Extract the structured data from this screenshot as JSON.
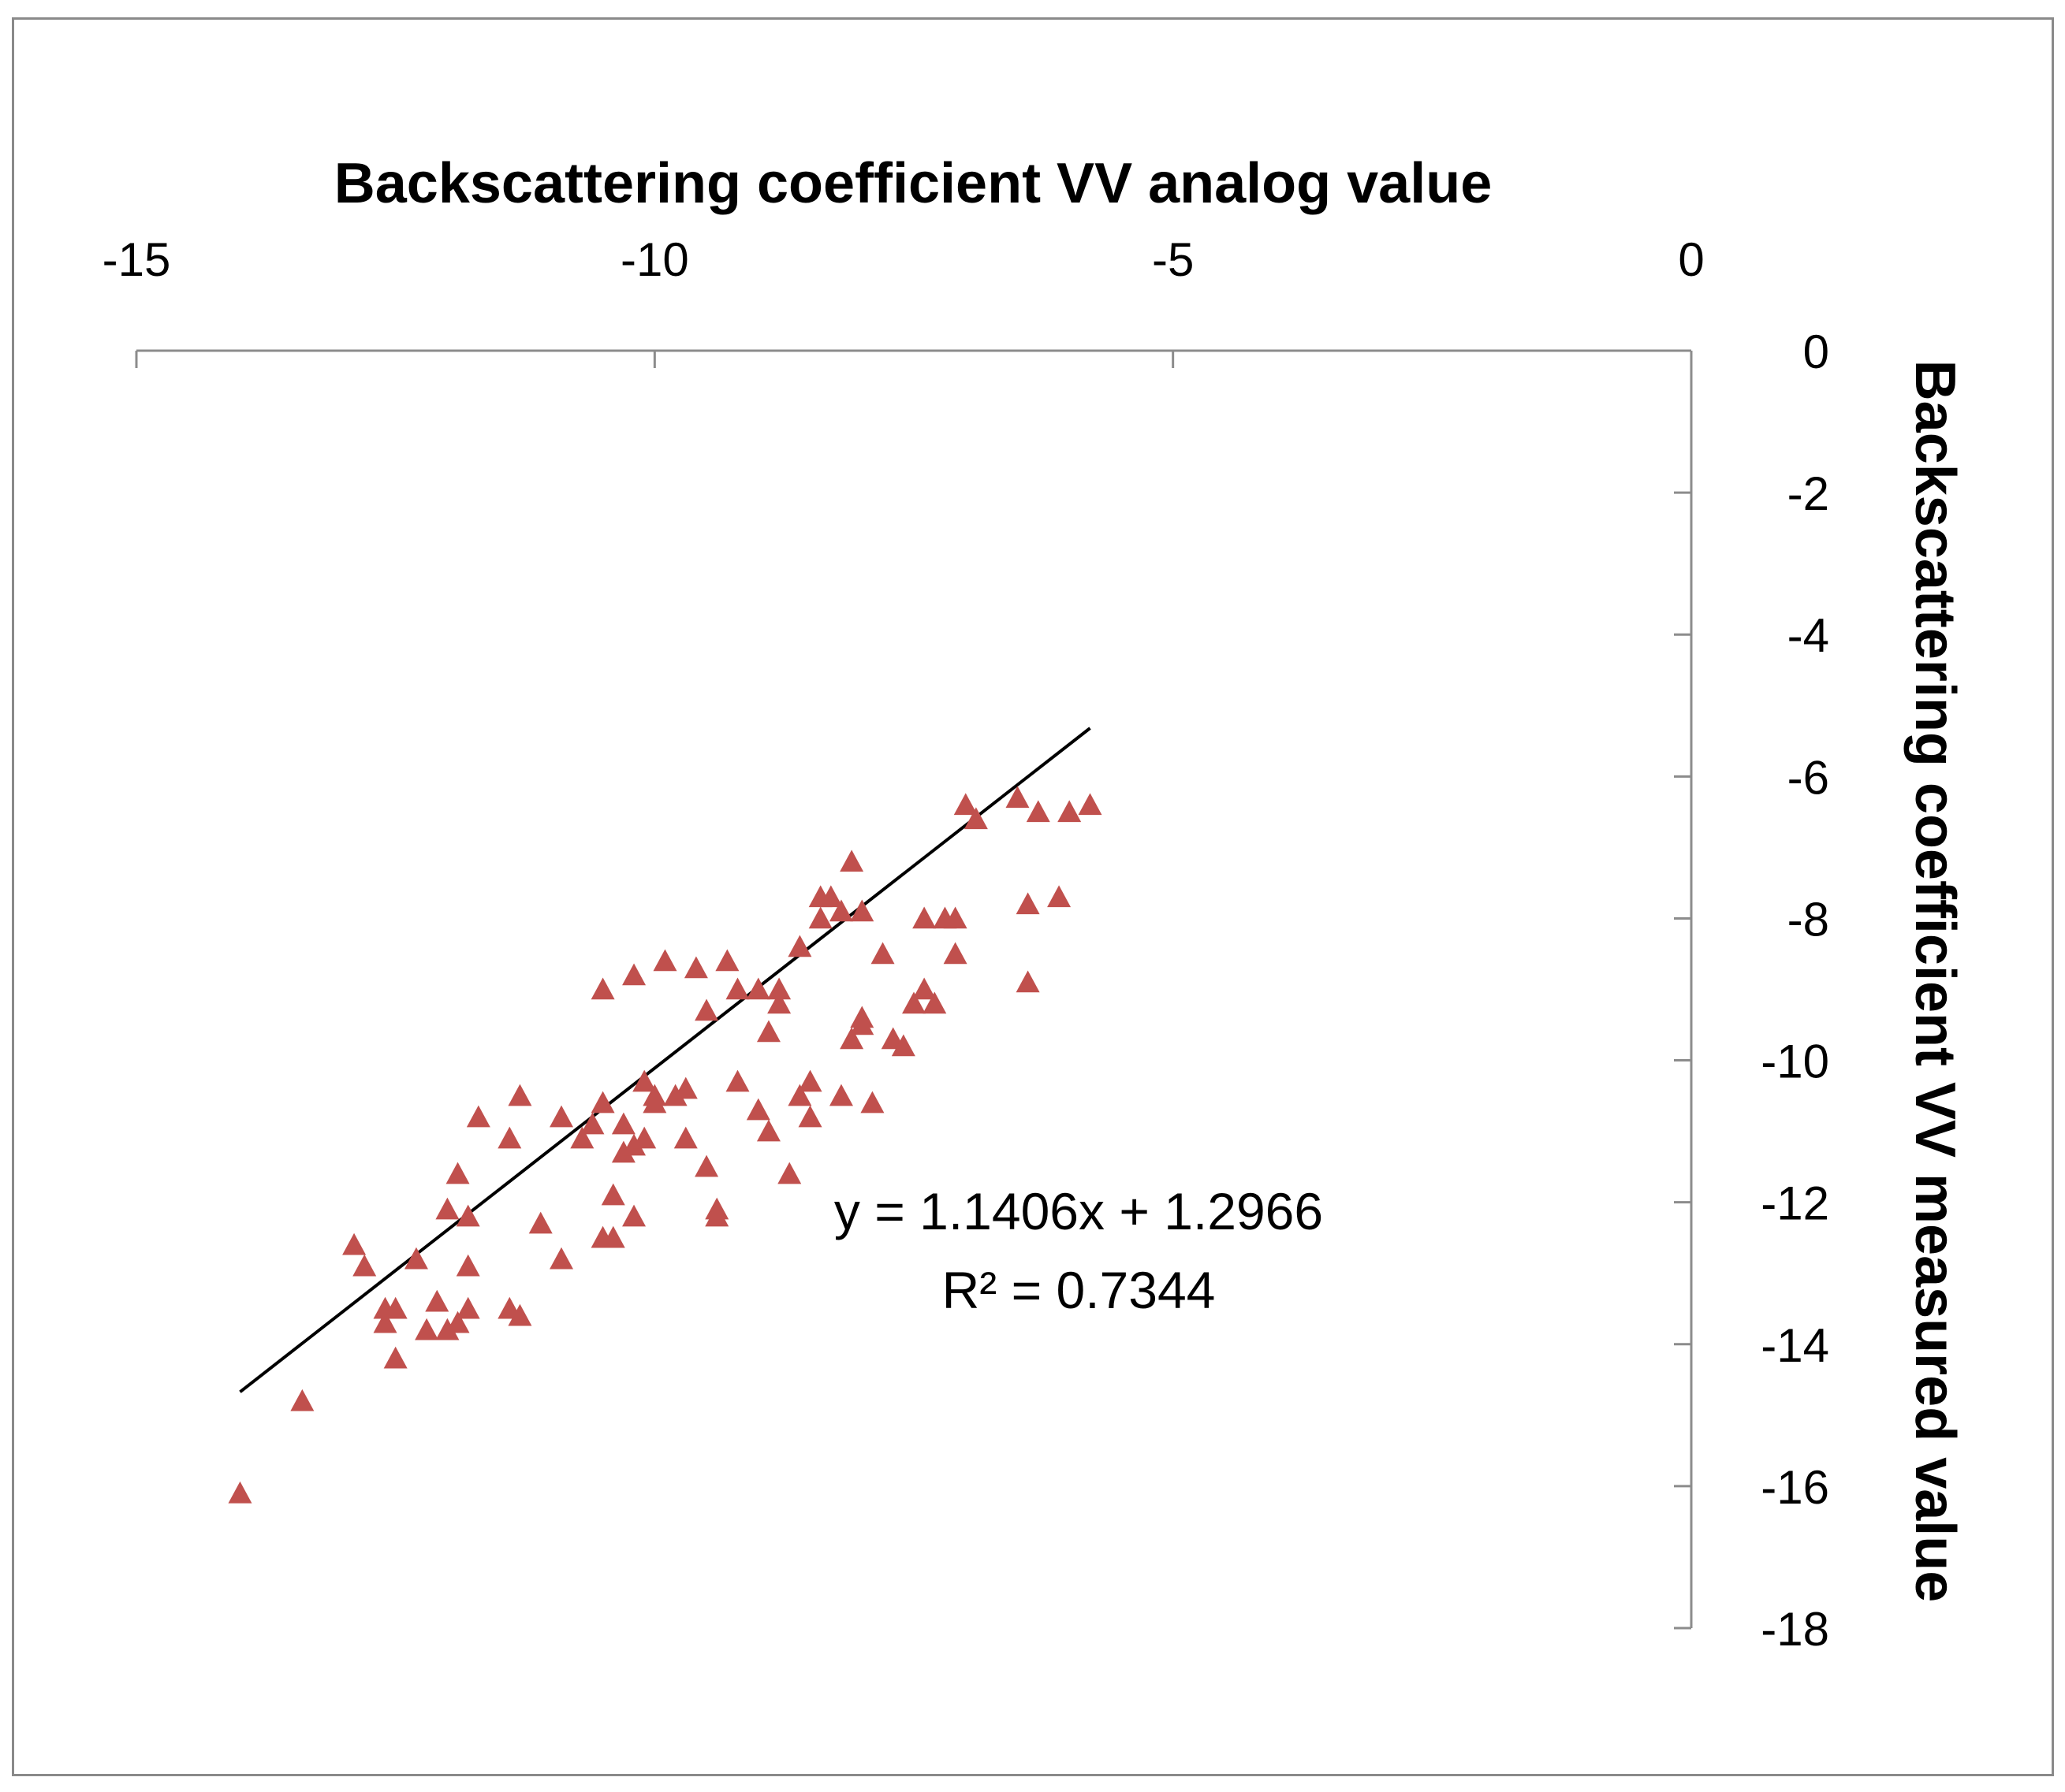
{
  "chart_data": {
    "type": "scatter",
    "title": "",
    "xlabel": "Backscattering coefficient VV analog value",
    "ylabel": "Backscattering coefficient VV measured value",
    "xlim": [
      -15,
      0
    ],
    "ylim": [
      -18,
      0
    ],
    "x_ticks": [
      "-15",
      "-10",
      "-5",
      "0"
    ],
    "y_ticks": [
      "0",
      "-2",
      "-4",
      "-6",
      "-8",
      "-10",
      "-12",
      "-14",
      "-16",
      "-18"
    ],
    "x_axis_position": "top",
    "y_axis_position": "right",
    "grid": false,
    "marker": "triangle",
    "marker_color": "#c0504d",
    "trendline": {
      "slope": 1.1406,
      "intercept": 1.2966,
      "x_range": [
        -14.0,
        -5.8
      ],
      "color": "#000000",
      "equation": "y = 1.1406x + 1.2966",
      "r2_label": "R² = 0.7344"
    },
    "series": [
      {
        "name": "Backscattering coefficient VV",
        "points": [
          [
            -14.0,
            -16.1
          ],
          [
            -13.4,
            -14.8
          ],
          [
            -12.9,
            -12.6
          ],
          [
            -12.8,
            -12.9
          ],
          [
            -12.6,
            -13.7
          ],
          [
            -12.6,
            -13.5
          ],
          [
            -12.5,
            -14.2
          ],
          [
            -12.5,
            -13.5
          ],
          [
            -12.3,
            -12.8
          ],
          [
            -12.2,
            -13.8
          ],
          [
            -12.1,
            -13.4
          ],
          [
            -12.0,
            -13.8
          ],
          [
            -12.0,
            -12.1
          ],
          [
            -11.9,
            -11.6
          ],
          [
            -11.9,
            -13.7
          ],
          [
            -11.8,
            -12.2
          ],
          [
            -11.8,
            -12.9
          ],
          [
            -11.8,
            -13.5
          ],
          [
            -11.7,
            -10.8
          ],
          [
            -11.4,
            -13.5
          ],
          [
            -11.4,
            -11.1
          ],
          [
            -11.3,
            -10.5
          ],
          [
            -11.3,
            -13.6
          ],
          [
            -11.1,
            -12.3
          ],
          [
            -10.9,
            -10.8
          ],
          [
            -10.9,
            -12.8
          ],
          [
            -10.7,
            -11.1
          ],
          [
            -10.6,
            -10.9
          ],
          [
            -10.5,
            -10.6
          ],
          [
            -10.5,
            -12.5
          ],
          [
            -10.5,
            -9.0
          ],
          [
            -10.4,
            -11.9
          ],
          [
            -10.4,
            -12.5
          ],
          [
            -10.3,
            -11.3
          ],
          [
            -10.3,
            -10.9
          ],
          [
            -10.2,
            -11.2
          ],
          [
            -10.2,
            -8.8
          ],
          [
            -10.2,
            -12.2
          ],
          [
            -10.1,
            -10.3
          ],
          [
            -10.1,
            -11.1
          ],
          [
            -10.0,
            -10.6
          ],
          [
            -10.0,
            -10.5
          ],
          [
            -9.9,
            -8.6
          ],
          [
            -9.8,
            -10.5
          ],
          [
            -9.7,
            -11.1
          ],
          [
            -9.7,
            -10.4
          ],
          [
            -9.6,
            -8.7
          ],
          [
            -9.5,
            -11.5
          ],
          [
            -9.5,
            -9.3
          ],
          [
            -9.4,
            -12.1
          ],
          [
            -9.4,
            -12.2
          ],
          [
            -9.3,
            -8.6
          ],
          [
            -9.2,
            -10.3
          ],
          [
            -9.2,
            -9.0
          ],
          [
            -9.0,
            -9.0
          ],
          [
            -9.0,
            -10.7
          ],
          [
            -8.9,
            -11.0
          ],
          [
            -8.9,
            -9.6
          ],
          [
            -8.8,
            -9.0
          ],
          [
            -8.8,
            -9.2
          ],
          [
            -8.7,
            -11.6
          ],
          [
            -8.6,
            -10.5
          ],
          [
            -8.6,
            -8.4
          ],
          [
            -8.5,
            -10.8
          ],
          [
            -8.5,
            -10.3
          ],
          [
            -8.4,
            -7.7
          ],
          [
            -8.4,
            -8.0
          ],
          [
            -8.3,
            -7.7
          ],
          [
            -8.2,
            -7.9
          ],
          [
            -8.2,
            -10.5
          ],
          [
            -8.1,
            -9.7
          ],
          [
            -8.1,
            -7.2
          ],
          [
            -8.0,
            -9.4
          ],
          [
            -8.0,
            -9.5
          ],
          [
            -8.0,
            -7.9
          ],
          [
            -7.9,
            -10.6
          ],
          [
            -7.8,
            -8.5
          ],
          [
            -7.7,
            -9.7
          ],
          [
            -7.6,
            -9.8
          ],
          [
            -7.5,
            -9.2
          ],
          [
            -7.4,
            -8.0
          ],
          [
            -7.4,
            -9.0
          ],
          [
            -7.3,
            -9.2
          ],
          [
            -7.2,
            -8.0
          ],
          [
            -7.1,
            -8.5
          ],
          [
            -7.1,
            -8.0
          ],
          [
            -7.0,
            -6.4
          ],
          [
            -6.9,
            -6.6
          ],
          [
            -6.5,
            -6.3
          ],
          [
            -6.4,
            -7.8
          ],
          [
            -6.4,
            -8.9
          ],
          [
            -6.3,
            -6.5
          ],
          [
            -6.1,
            -7.7
          ],
          [
            -6.0,
            -6.5
          ],
          [
            -5.8,
            -6.4
          ]
        ]
      }
    ]
  }
}
